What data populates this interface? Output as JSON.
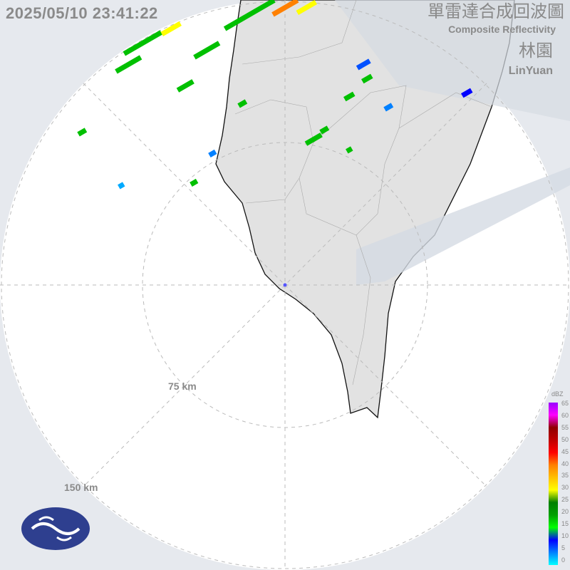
{
  "timestamp": "2025/05/10 23:41:22",
  "title_zh": "單雷達合成回波圖",
  "title_en": "Composite Reflectivity",
  "station_zh": "林園",
  "station_en": "LinYuan",
  "range_rings": [
    "75 km",
    "150 km"
  ],
  "legend": {
    "unit": "dBZ",
    "ticks": [
      "65",
      "60",
      "55",
      "50",
      "45",
      "40",
      "35",
      "30",
      "25",
      "20",
      "15",
      "10",
      "5",
      "0"
    ],
    "colors": [
      "#00ffff",
      "#0080ff",
      "#0000ff",
      "#00ff00",
      "#00a000",
      "#008000",
      "#ffff00",
      "#ffc000",
      "#ff8000",
      "#ff0000",
      "#c00000",
      "#900000",
      "#ff00ff",
      "#9900ff"
    ]
  },
  "logo": "cwa-logo"
}
